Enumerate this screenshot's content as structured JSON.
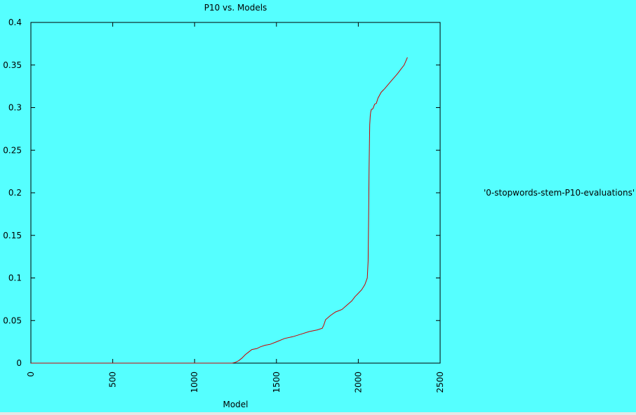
{
  "chart_data": {
    "type": "line",
    "title": "P10 vs. Models",
    "xlabel": "Model",
    "ylabel": "",
    "xlim": [
      0,
      2500
    ],
    "ylim": [
      0,
      0.4
    ],
    "x_ticks": [
      0,
      500,
      1000,
      1500,
      2000,
      2500
    ],
    "y_ticks": [
      0,
      0.05,
      0.1,
      0.15,
      0.2,
      0.25,
      0.3,
      0.35,
      0.4
    ],
    "grid": false,
    "legend_position": "right",
    "series": [
      {
        "name": "'0-stopwords-stem-P10-evaluations'",
        "color": "#cc0000",
        "x": [
          0,
          1200,
          1230,
          1250,
          1270,
          1290,
          1310,
          1330,
          1350,
          1380,
          1400,
          1430,
          1460,
          1500,
          1550,
          1600,
          1650,
          1700,
          1750,
          1780,
          1790,
          1800,
          1830,
          1860,
          1900,
          1930,
          1960,
          1980,
          2000,
          2020,
          2040,
          2055,
          2060,
          2063,
          2066,
          2068,
          2070,
          2073,
          2076,
          2080,
          2085,
          2090,
          2100,
          2110,
          2120,
          2140,
          2160,
          2200,
          2240,
          2260,
          2280,
          2300
        ],
        "y": [
          0,
          0,
          0,
          0.001,
          0.003,
          0.006,
          0.01,
          0.013,
          0.016,
          0.017,
          0.019,
          0.021,
          0.022,
          0.025,
          0.029,
          0.031,
          0.034,
          0.037,
          0.039,
          0.041,
          0.045,
          0.051,
          0.056,
          0.06,
          0.063,
          0.068,
          0.073,
          0.078,
          0.082,
          0.086,
          0.092,
          0.1,
          0.12,
          0.17,
          0.23,
          0.26,
          0.28,
          0.29,
          0.295,
          0.298,
          0.298,
          0.299,
          0.304,
          0.305,
          0.311,
          0.318,
          0.322,
          0.331,
          0.34,
          0.345,
          0.35,
          0.359
        ]
      }
    ]
  }
}
